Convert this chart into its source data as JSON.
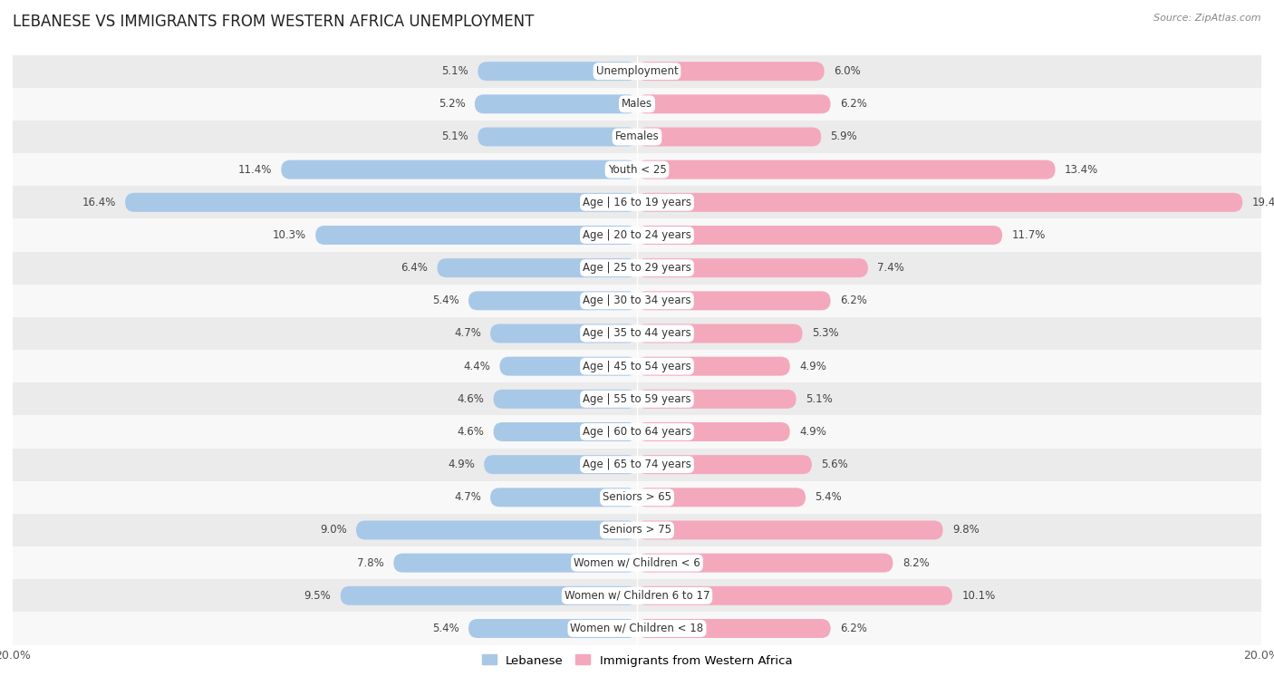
{
  "title": "LEBANESE VS IMMIGRANTS FROM WESTERN AFRICA UNEMPLOYMENT",
  "source": "Source: ZipAtlas.com",
  "categories": [
    "Unemployment",
    "Males",
    "Females",
    "Youth < 25",
    "Age | 16 to 19 years",
    "Age | 20 to 24 years",
    "Age | 25 to 29 years",
    "Age | 30 to 34 years",
    "Age | 35 to 44 years",
    "Age | 45 to 54 years",
    "Age | 55 to 59 years",
    "Age | 60 to 64 years",
    "Age | 65 to 74 years",
    "Seniors > 65",
    "Seniors > 75",
    "Women w/ Children < 6",
    "Women w/ Children 6 to 17",
    "Women w/ Children < 18"
  ],
  "lebanese": [
    5.1,
    5.2,
    5.1,
    11.4,
    16.4,
    10.3,
    6.4,
    5.4,
    4.7,
    4.4,
    4.6,
    4.6,
    4.9,
    4.7,
    9.0,
    7.8,
    9.5,
    5.4
  ],
  "western_africa": [
    6.0,
    6.2,
    5.9,
    13.4,
    19.4,
    11.7,
    7.4,
    6.2,
    5.3,
    4.9,
    5.1,
    4.9,
    5.6,
    5.4,
    9.8,
    8.2,
    10.1,
    6.2
  ],
  "lebanese_color": "#a8c8e8",
  "western_africa_color": "#f4a8bc",
  "background_row_light": "#ebebeb",
  "background_row_white": "#f8f8f8",
  "xlim": 20.0,
  "bar_height": 0.58,
  "legend_lebanese": "Lebanese",
  "legend_western_africa": "Immigrants from Western Africa",
  "title_fontsize": 12,
  "label_fontsize": 8.5,
  "tick_fontsize": 9,
  "value_fontsize": 8.5,
  "cat_fontsize": 8.5
}
